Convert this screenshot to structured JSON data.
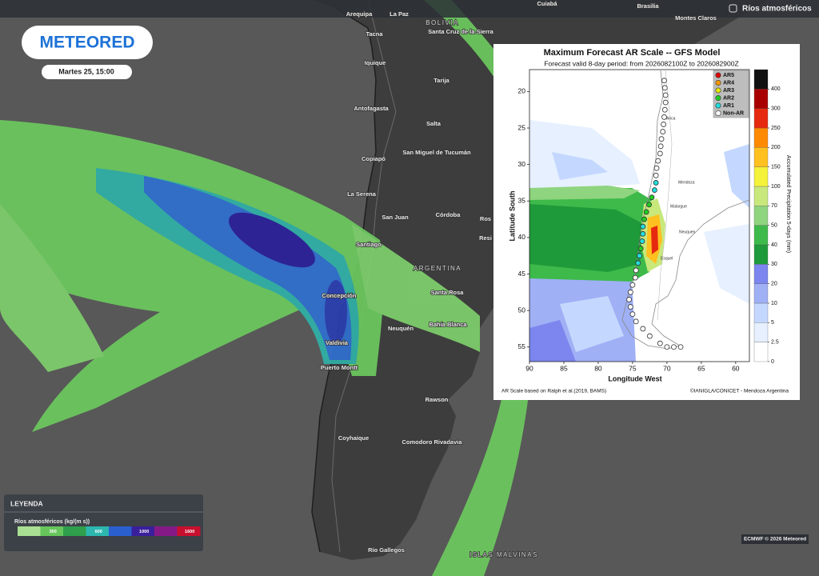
{
  "header": {
    "layer": "Ríos atmosféricos"
  },
  "logo": "METEORED",
  "timestamp": "Martes 25, 15:00",
  "places": [
    "Arequipa",
    "La Paz",
    "BOLIVIA",
    "Cuiabá",
    "Brasilia",
    "Montes Claros",
    "Tacna",
    "Santa Cruz de la Sierra",
    "Iquique",
    "Tarija",
    "Antofagasta",
    "Salta",
    "San Miguel de Tucumán",
    "Copiapó",
    "La Serena",
    "Córdoba",
    "San Juan",
    "Ros",
    "Santiago",
    "Resi",
    "ARGENTINA",
    "Concepción",
    "Santa Rosa",
    "Neuquén",
    "Bahía Blanca",
    "Valdivia",
    "Puerto Montt",
    "Rawson",
    "Coyhaique",
    "Comodoro Rivadavia",
    "Río Gallegos",
    "ISLAS MALVINAS"
  ],
  "legend": {
    "title": "LEYENDA",
    "label": "Ríos atmosféricos (kg/(m s))",
    "bands": [
      {
        "color": "#a9df92"
      },
      {
        "color": "#66c65c",
        "label": 300
      },
      {
        "color": "#2f9f4c"
      },
      {
        "color": "#2cb6ae",
        "label": 600
      },
      {
        "color": "#2a5fd0"
      },
      {
        "color": "#3a1f9c",
        "label": 1000
      },
      {
        "color": "#851a86"
      },
      {
        "color": "#c8102e",
        "label": 1600
      }
    ]
  },
  "credit": "ECMWF © 2026 Meteored",
  "chart_data": {
    "type": "scatter",
    "title": "Maximum Forecast AR Scale -- GFS Model",
    "subtitle": "Forecast valid 8-day period: from 2026082100Z to 2026082900Z",
    "x_label": "Longitude West",
    "y_label": "Latitude South",
    "xlim": [
      90,
      58
    ],
    "ylim": [
      17,
      57
    ],
    "xticks": [
      90,
      85,
      80,
      75,
      70,
      65,
      60
    ],
    "yticks": [
      20,
      25,
      30,
      35,
      40,
      45,
      50,
      55
    ],
    "map_labels": [
      "Arica",
      "Mendoza",
      "Malargue",
      "Neuquen",
      "Esquel"
    ],
    "series": [
      {
        "name": "AR5",
        "color": "#e00000",
        "x": [],
        "y": []
      },
      {
        "name": "AR4",
        "color": "#ff9900",
        "x": [],
        "y": []
      },
      {
        "name": "AR3",
        "color": "#e8e800",
        "x": [],
        "y": []
      },
      {
        "name": "AR2",
        "color": "#22cc22",
        "x": [
          72.2,
          72.6,
          73.0,
          73.3,
          73.8
        ],
        "y": [
          34.5,
          35.5,
          36.5,
          37.5,
          41.5
        ]
      },
      {
        "name": "AR1",
        "color": "#22dddd",
        "x": [
          71.6,
          71.8,
          73.5,
          73.5,
          73.6,
          74.0,
          74.2
        ],
        "y": [
          32.5,
          33.5,
          38.5,
          39.5,
          40.5,
          42.5,
          43.5
        ]
      },
      {
        "name": "Non-AR",
        "color": "#ffffff",
        "x": [
          70.4,
          70.3,
          70.2,
          70.2,
          70.3,
          70.4,
          70.5,
          70.6,
          70.8,
          70.9,
          71.0,
          71.3,
          71.5,
          71.6,
          74.5,
          74.6,
          75.0,
          75.3,
          75.5,
          75.3,
          75.0,
          74.5,
          73.5,
          72.5,
          71.0,
          70.0,
          69.0,
          68.0
        ],
        "y": [
          18.5,
          19.5,
          20.5,
          21.5,
          22.5,
          23.5,
          24.5,
          25.5,
          26.5,
          27.5,
          28.5,
          29.5,
          30.5,
          31.5,
          44.5,
          45.5,
          46.5,
          47.5,
          48.5,
          49.5,
          50.5,
          51.5,
          52.5,
          53.5,
          54.5,
          55.0,
          55.0,
          55.0
        ]
      }
    ],
    "colorbar": {
      "label": "Accumulated Precipitation 5-days (mm)",
      "ticks": [
        0,
        2.5,
        5,
        10,
        20,
        30,
        40,
        50,
        70,
        100,
        150,
        200,
        250,
        300,
        400
      ],
      "colors": [
        "#ffffff",
        "#e6f0ff",
        "#c4d8ff",
        "#9fb0f5",
        "#7c86ee",
        "#1f9a3a",
        "#3dba4a",
        "#8fd47e",
        "#c8e87c",
        "#f4f23a",
        "#ffc020",
        "#ff8a00",
        "#e52a10",
        "#a80000",
        "#111111"
      ],
      "note_left": "AR Scale based on Ralph et al.(2019, BAMS)",
      "note_right": "©IANIGLA/CONICET - Mendoza Argentina"
    }
  }
}
